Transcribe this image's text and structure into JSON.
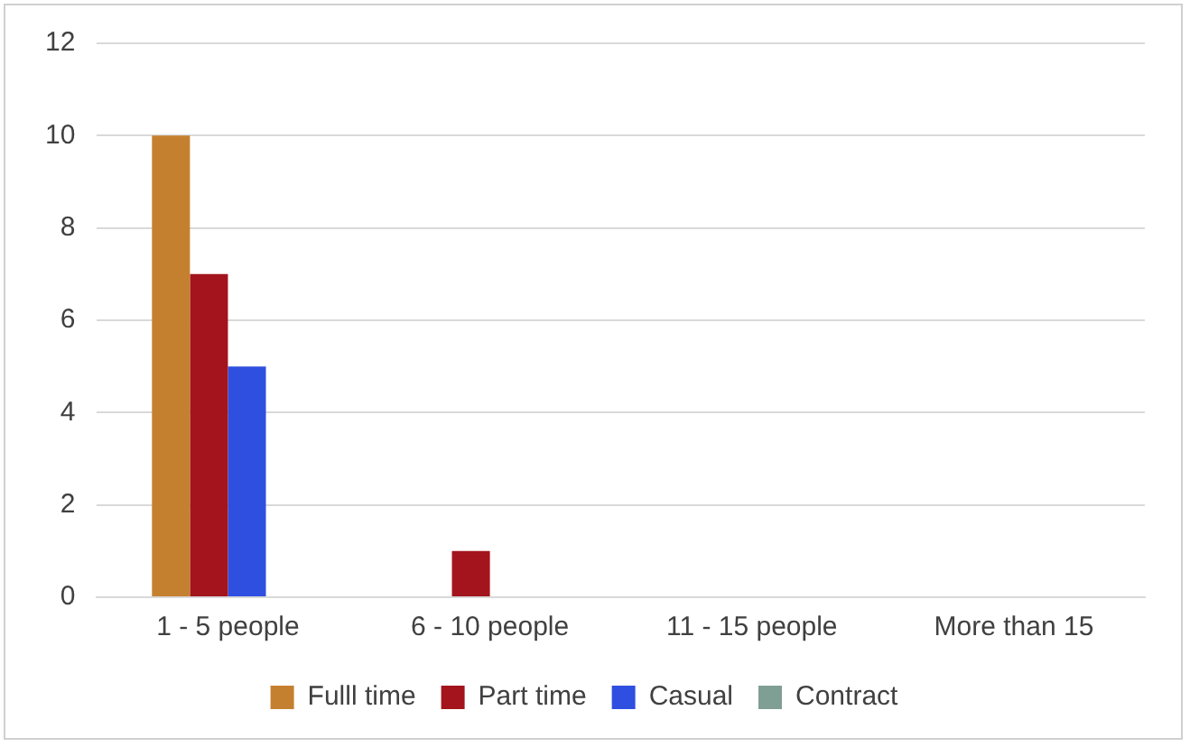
{
  "chart_data": {
    "type": "bar",
    "categories": [
      "1 - 5 people",
      "6 - 10 people",
      "11 - 15 people",
      "More than 15"
    ],
    "series": [
      {
        "name": "Fulll time",
        "color": "#c5802f",
        "values": [
          10,
          0,
          0,
          0
        ]
      },
      {
        "name": "Part time",
        "color": "#a3141c",
        "values": [
          7,
          1,
          0,
          0
        ]
      },
      {
        "name": "Casual",
        "color": "#2f4fe0",
        "values": [
          5,
          0,
          0,
          0
        ]
      },
      {
        "name": "Contract",
        "color": "#7f9e94",
        "values": [
          0,
          0,
          0,
          0
        ]
      }
    ],
    "ylim": [
      0,
      12
    ],
    "yticks": [
      0,
      2,
      4,
      6,
      8,
      10,
      12
    ],
    "grid": "y",
    "legend": "bottom"
  }
}
